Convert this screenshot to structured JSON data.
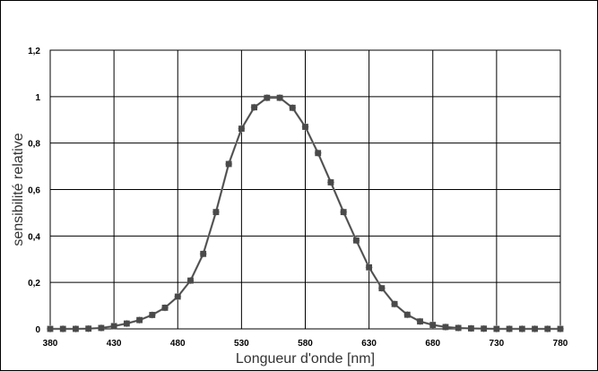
{
  "chart_data": {
    "type": "line",
    "xlabel": "Longueur d'onde [nm]",
    "ylabel": "sensibilité relative",
    "xlim": [
      380,
      780
    ],
    "ylim": [
      0,
      1.2
    ],
    "x_ticks": [
      380,
      430,
      480,
      530,
      580,
      630,
      680,
      730,
      780
    ],
    "y_ticks": [
      0,
      0.2,
      0.4,
      0.6,
      0.8,
      1,
      1.2
    ],
    "x_tick_labels": [
      "380",
      "430",
      "480",
      "530",
      "580",
      "630",
      "680",
      "730",
      "780"
    ],
    "y_tick_labels": [
      "0",
      "0,2",
      "0,4",
      "0,6",
      "0,8",
      "1",
      "1,2"
    ],
    "grid": true,
    "legend": "none",
    "x": [
      380,
      390,
      400,
      410,
      420,
      430,
      440,
      450,
      460,
      470,
      480,
      490,
      500,
      510,
      520,
      530,
      540,
      550,
      560,
      570,
      580,
      590,
      600,
      610,
      620,
      630,
      640,
      650,
      660,
      670,
      680,
      690,
      700,
      710,
      720,
      730,
      740,
      750,
      760,
      770,
      780
    ],
    "series": [
      {
        "color": "#a6a6a6",
        "marker": "diamond",
        "values": [
          0.0,
          0.0,
          0.0,
          0.001,
          0.004,
          0.012,
          0.023,
          0.038,
          0.06,
          0.091,
          0.139,
          0.208,
          0.323,
          0.503,
          0.71,
          0.862,
          0.954,
          0.995,
          0.995,
          0.952,
          0.87,
          0.757,
          0.631,
          0.503,
          0.381,
          0.265,
          0.175,
          0.107,
          0.061,
          0.032,
          0.017,
          0.008,
          0.004,
          0.002,
          0.001,
          0.0,
          0.0,
          0.0,
          0.0,
          0.0,
          0.0
        ]
      },
      {
        "color": "#4a4a4a",
        "marker": "square",
        "values": [
          0.0,
          0.0,
          0.0,
          0.001,
          0.004,
          0.012,
          0.023,
          0.038,
          0.06,
          0.091,
          0.139,
          0.208,
          0.323,
          0.503,
          0.71,
          0.862,
          0.954,
          0.995,
          0.995,
          0.952,
          0.87,
          0.757,
          0.631,
          0.503,
          0.381,
          0.265,
          0.175,
          0.107,
          0.061,
          0.032,
          0.017,
          0.008,
          0.004,
          0.002,
          0.001,
          0.0,
          0.0,
          0.0,
          0.0,
          0.0,
          0.0
        ]
      }
    ]
  }
}
